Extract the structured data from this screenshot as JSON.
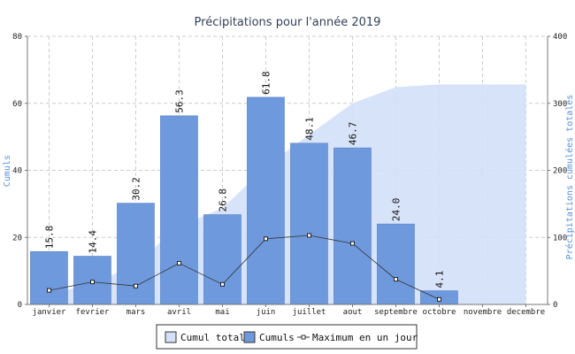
{
  "chart_data": {
    "type": "bar",
    "title": "Précipitations pour l'année 2019",
    "categories": [
      "janvier",
      "fevrier",
      "mars",
      "avril",
      "mai",
      "juin",
      "juillet",
      "aout",
      "septembre",
      "octobre",
      "novembre",
      "decembre"
    ],
    "ylabel": "Cumuls",
    "y2label": "Précipitations cumulées totales",
    "ylim": [
      0,
      80
    ],
    "y2lim": [
      0,
      400
    ],
    "yticks": [
      0,
      20,
      40,
      60,
      80
    ],
    "y2ticks": [
      0,
      100,
      200,
      300,
      400
    ],
    "grid": true,
    "legend_position": "bottom-center",
    "series": [
      {
        "name": "Cumul total",
        "type": "area",
        "axis": "right",
        "color": "#d3e0f8",
        "values": [
          15.8,
          30.2,
          60.4,
          116.7,
          143.5,
          205.3,
          253.4,
          300.1,
          324.1,
          328.2,
          328.2,
          328.2
        ]
      },
      {
        "name": "Cumuls",
        "type": "bar",
        "axis": "left",
        "color": "#6f99dd",
        "values": [
          15.8,
          14.4,
          30.2,
          56.3,
          26.8,
          61.8,
          48.1,
          46.7,
          24.0,
          4.1,
          null,
          null
        ],
        "labels": [
          "15.8",
          "14.4",
          "30.2",
          "56.3",
          "26.8",
          "61.8",
          "48.1",
          "46.7",
          "24.0",
          "4.1",
          "",
          ""
        ]
      },
      {
        "name": "Maximum en un jour",
        "type": "line",
        "axis": "left",
        "color": "#333333",
        "values": [
          4.2,
          6.7,
          5.5,
          12.3,
          6.0,
          19.6,
          20.6,
          18.2,
          7.5,
          1.5,
          null,
          null
        ]
      }
    ]
  }
}
